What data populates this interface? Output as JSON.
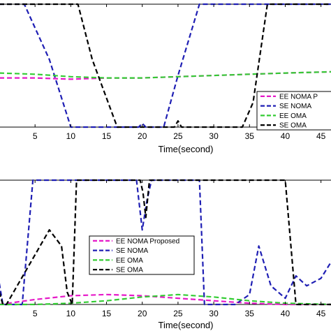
{
  "chart_data": [
    {
      "type": "line",
      "xlabel": "Time(second)",
      "ylabel": "",
      "xlim": [
        0,
        46.5
      ],
      "ylim": [
        0,
        1
      ],
      "xticks": [
        5,
        10,
        15,
        20,
        25,
        30,
        35,
        40,
        45
      ],
      "grid": false,
      "legend_placement": "lower-right",
      "series": [
        {
          "name": "EE NOMA P",
          "color": "#e619c8",
          "x": [
            0,
            5,
            10,
            15,
            20,
            25,
            30,
            35,
            40,
            46.5
          ],
          "y": [
            0.4,
            0.4,
            0.39,
            0.4,
            0.4,
            0.41,
            0.42,
            0.43,
            0.44,
            0.45
          ]
        },
        {
          "name": "SE NOMA",
          "color": "#1f1fb4",
          "x": [
            0,
            3.5,
            7,
            10,
            14,
            19.5,
            20,
            20.5,
            23,
            25,
            28,
            29,
            41,
            46.5
          ],
          "y": [
            1.0,
            1.0,
            0.55,
            0.0,
            0.0,
            0.0,
            0.03,
            0.0,
            0.0,
            0.42,
            1.0,
            1.0,
            1.0,
            1.0
          ]
        },
        {
          "name": "EE OMA",
          "color": "#33cc33",
          "x": [
            0,
            5,
            10,
            15,
            20,
            25,
            30,
            35,
            40,
            46.5
          ],
          "y": [
            0.44,
            0.43,
            0.41,
            0.4,
            0.4,
            0.41,
            0.42,
            0.43,
            0.44,
            0.45
          ]
        },
        {
          "name": "SE OMA",
          "color": "#000000",
          "x": [
            0,
            9,
            11,
            13,
            16.5,
            24.5,
            25,
            25.5,
            34,
            35.5,
            37.5,
            46.5
          ],
          "y": [
            1.0,
            1.0,
            1.0,
            0.55,
            0.0,
            0.0,
            0.05,
            0.0,
            0.0,
            0.2,
            1.0,
            1.0
          ]
        }
      ]
    },
    {
      "type": "line",
      "xlabel": "Time(second)",
      "ylabel": "",
      "xlim": [
        0,
        46.5
      ],
      "ylim": [
        0,
        1
      ],
      "xticks": [
        5,
        10,
        15,
        20,
        25,
        30,
        35,
        40,
        45
      ],
      "grid": false,
      "legend_placement": "center-left",
      "series": [
        {
          "name": "EE NOMA Proposed",
          "color": "#e619c8",
          "x": [
            0,
            5,
            10,
            15,
            20,
            25,
            30,
            35,
            40,
            46.5
          ],
          "y": [
            0.0,
            0.04,
            0.07,
            0.08,
            0.07,
            0.05,
            0.03,
            0.01,
            0.0,
            0.0
          ]
        },
        {
          "name": "SE NOMA",
          "color": "#1f1fb4",
          "x": [
            0,
            0.5,
            1.5,
            3.2,
            4.7,
            19.2,
            20.0,
            20.7,
            21.3,
            28,
            28.7,
            33,
            35.0,
            36.3,
            38,
            40,
            41.5,
            43,
            45,
            46.5
          ],
          "y": [
            0.17,
            0.0,
            0.0,
            0.0,
            1.0,
            1.0,
            0.6,
            0.85,
            1.0,
            1.0,
            0.0,
            0.0,
            0.08,
            0.47,
            0.15,
            0.05,
            0.23,
            0.15,
            0.21,
            0.35
          ]
        },
        {
          "name": "EE OMA",
          "color": "#33cc33",
          "x": [
            0,
            5,
            10,
            15,
            20,
            25,
            30,
            35,
            40,
            46.5
          ],
          "y": [
            0.0,
            0.0,
            0.01,
            0.03,
            0.06,
            0.08,
            0.06,
            0.03,
            0.01,
            0.0
          ]
        },
        {
          "name": "SE OMA",
          "color": "#000000",
          "x": [
            0,
            0.5,
            1.0,
            3,
            5,
            7,
            8.7,
            9.5,
            10.2,
            10.8,
            19.7,
            20.1,
            20.5,
            21.0,
            40,
            41.5,
            46.5
          ],
          "y": [
            0.1,
            0.0,
            0.0,
            0.2,
            0.4,
            0.6,
            0.47,
            0.1,
            0.0,
            1.0,
            1.0,
            0.9,
            0.7,
            1.0,
            1.0,
            0.0,
            0.0
          ]
        }
      ]
    }
  ]
}
